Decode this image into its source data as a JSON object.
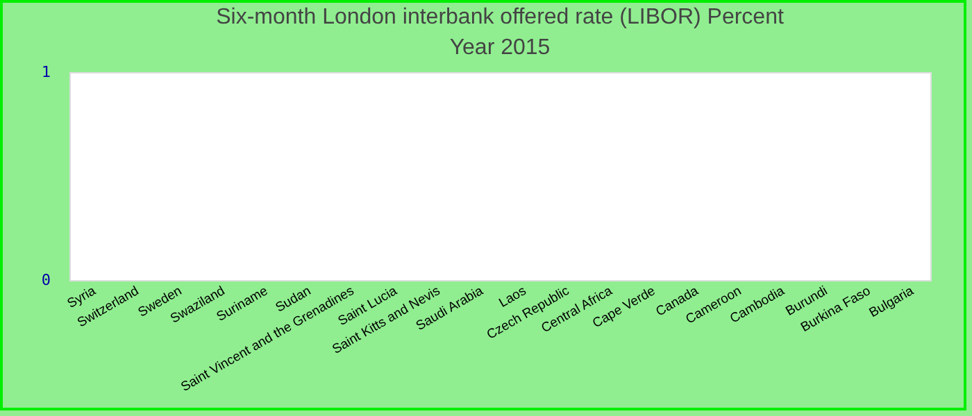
{
  "chart_data": {
    "type": "bar",
    "title": "Six-month London interbank offered rate (LIBOR)  Percent",
    "subtitle": "Year 2015",
    "categories": [
      "Syria",
      "Switzerland",
      "Sweden",
      "Swaziland",
      "Suriname",
      "Sudan",
      "Saint Vincent and the Grenadines",
      "Saint Lucia",
      "Saint Kitts and Nevis",
      "Saudi Arabia",
      "Laos",
      "Czech Republic",
      "Central Africa",
      "Cape Verde",
      "Canada",
      "Cameroon",
      "Cambodia",
      "Burundi",
      "Burkina Faso",
      "Bulgaria"
    ],
    "values": [
      0,
      0,
      0,
      0,
      0,
      0,
      0,
      0,
      0,
      0,
      0,
      0,
      0,
      0,
      0,
      0,
      0,
      0,
      0,
      0
    ],
    "ylim": [
      0,
      1
    ],
    "yticks": [
      0,
      1
    ]
  }
}
